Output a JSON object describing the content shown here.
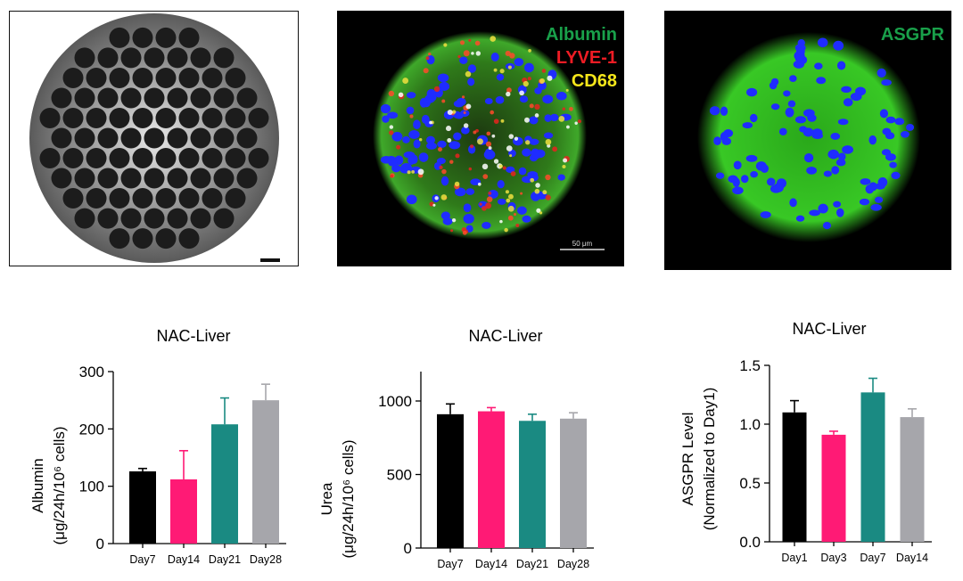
{
  "images": {
    "well_plate": {
      "label": "microwell-plate-micrograph"
    },
    "spheroid1": {
      "markers": [
        {
          "text": "Albumin",
          "color": "#19a04a"
        },
        {
          "text": "LYVE-1",
          "color": "#ee1c24"
        },
        {
          "text": "CD68",
          "color": "#f5e61a"
        }
      ],
      "scalebar_text": "50 μm"
    },
    "spheroid2": {
      "markers": [
        {
          "text": "ASGPR",
          "color": "#19a04a"
        }
      ]
    }
  },
  "chart_data": [
    {
      "type": "bar",
      "title": "NAC-Liver",
      "ylabel_line1": "Albumin",
      "ylabel_line2": "(μg/24h/10⁶ cells)",
      "categories": [
        "Day7",
        "Day14",
        "Day21",
        "Day28"
      ],
      "values": [
        126,
        112,
        208,
        250
      ],
      "errors": [
        5,
        50,
        46,
        28
      ],
      "colors": [
        "#000000",
        "#ff1a75",
        "#1a8a82",
        "#a6a6ab"
      ],
      "ylim": [
        0,
        300
      ],
      "yticks": [
        "0",
        "100",
        "200",
        "300"
      ]
    },
    {
      "type": "bar",
      "title": "NAC-Liver",
      "ylabel_line1": "Urea",
      "ylabel_line2": "(μg/24h/10⁶ cells)",
      "categories": [
        "Day7",
        "Day14",
        "Day21",
        "Day28"
      ],
      "values": [
        910,
        930,
        865,
        880
      ],
      "errors": [
        70,
        25,
        45,
        40
      ],
      "colors": [
        "#000000",
        "#ff1a75",
        "#1a8a82",
        "#a6a6ab"
      ],
      "ylim": [
        0,
        1200
      ],
      "yticks": [
        "0",
        "500",
        "1000"
      ]
    },
    {
      "type": "bar",
      "title": "NAC-Liver",
      "ylabel_line1": "ASGPR Level",
      "ylabel_line2": "(Normalized to Day1)",
      "categories": [
        "Day1",
        "Day3",
        "Day7",
        "Day14"
      ],
      "values": [
        1.1,
        0.91,
        1.27,
        1.06
      ],
      "errors": [
        0.1,
        0.03,
        0.12,
        0.07
      ],
      "colors": [
        "#000000",
        "#ff1a75",
        "#1a8a82",
        "#a6a6ab"
      ],
      "ylim": [
        0,
        1.5
      ],
      "yticks": [
        "0.0",
        "0.5",
        "1.0",
        "1.5"
      ]
    }
  ]
}
